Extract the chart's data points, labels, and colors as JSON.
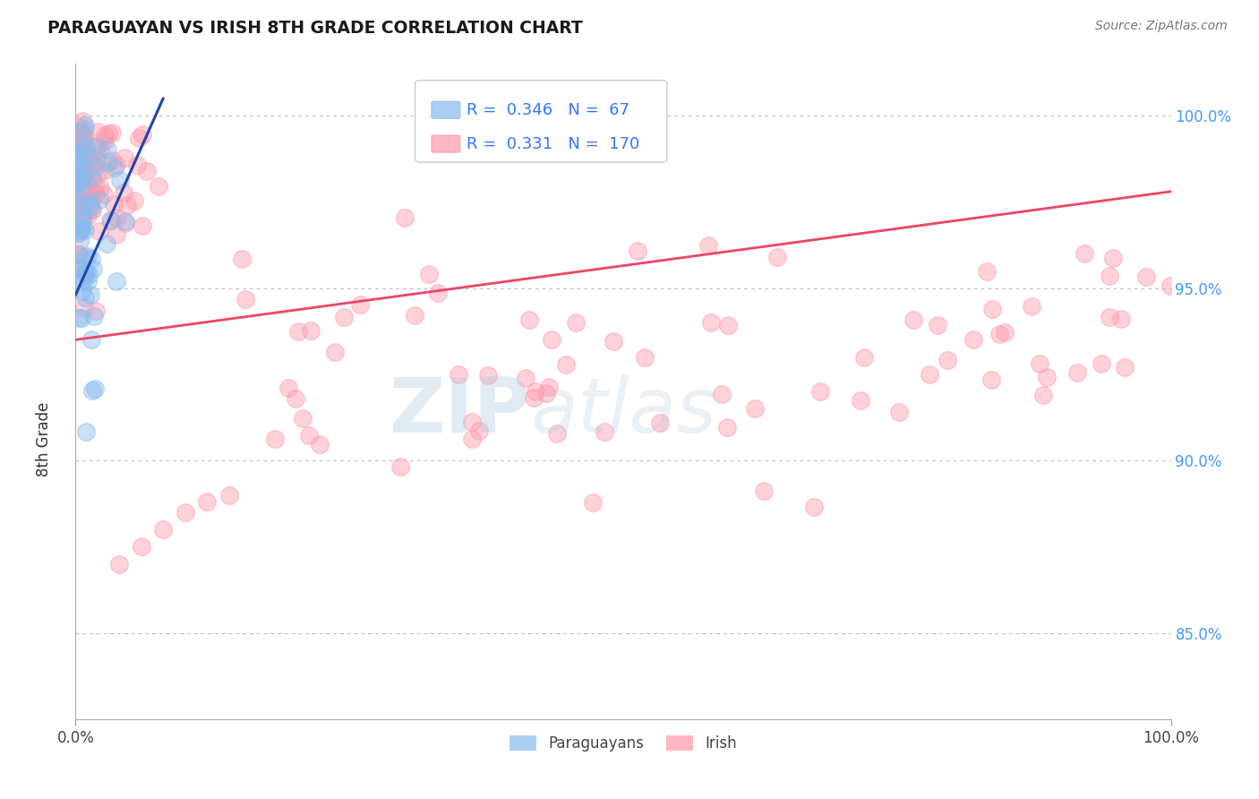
{
  "title": "PARAGUAYAN VS IRISH 8TH GRADE CORRELATION CHART",
  "source": "Source: ZipAtlas.com",
  "ylabel": "8th Grade",
  "xlim": [
    0.0,
    1.0
  ],
  "ylim": [
    0.825,
    1.015
  ],
  "legend_paraguayan": {
    "R": 0.346,
    "N": 67,
    "color": "#88BBEE"
  },
  "legend_irish": {
    "R": 0.331,
    "N": 170,
    "color": "#FF99AA"
  },
  "paraguayan_color": "#88BBEE",
  "irish_color": "#FF99AA",
  "trend_paraguayan_color": "#2244AA",
  "trend_irish_color": "#EE4466",
  "watermark_zip": "ZIP",
  "watermark_atlas": "atlas",
  "background_color": "#ffffff",
  "grid_color": "#bbbbbb",
  "ytick_vals": [
    0.85,
    0.9,
    0.95,
    1.0
  ],
  "ytick_labels": [
    "85.0%",
    "90.0%",
    "95.0%",
    "100.0%"
  ],
  "ytick_color": "#4499FF",
  "par_trend_x0": 0.0,
  "par_trend_y0": 0.948,
  "par_trend_x1": 0.08,
  "par_trend_y1": 1.005,
  "ir_trend_x0": 0.0,
  "ir_trend_y0": 0.935,
  "ir_trend_x1": 1.0,
  "ir_trend_y1": 0.978
}
